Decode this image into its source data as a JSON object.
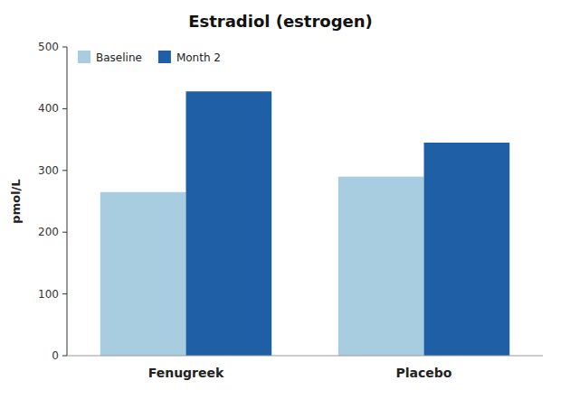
{
  "chart_data": {
    "type": "bar",
    "title": "Estradiol (estrogen)",
    "ylabel": "pmol/L",
    "categories": [
      "Fenugreek",
      "Placebo"
    ],
    "series": [
      {
        "name": "Baseline",
        "color": "#a8cce0",
        "values": [
          265,
          290
        ]
      },
      {
        "name": "Month 2",
        "color": "#1f5fa6",
        "values": [
          428,
          345
        ]
      }
    ],
    "ylim": [
      0,
      500
    ],
    "yticks": [
      0,
      100,
      200,
      300,
      400,
      500
    ],
    "grid": false,
    "legend": "upper left"
  }
}
